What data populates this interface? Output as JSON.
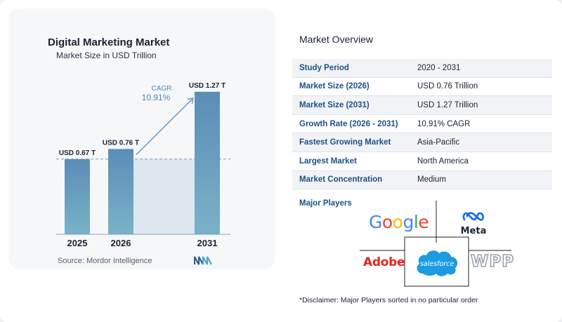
{
  "chart_data": {
    "type": "bar",
    "title": "Digital Marketing Market",
    "subtitle": "Market Size in USD Trillion",
    "categories": [
      "2025",
      "2026",
      "2031"
    ],
    "values": [
      0.67,
      0.76,
      1.27
    ],
    "value_labels": [
      "USD 0.67 T",
      "USD 0.76 T",
      "USD 1.27 T"
    ],
    "ylim": [
      0,
      1.35
    ],
    "grid": false,
    "reference_line_value": 0.67,
    "cagr": {
      "label": "CAGR",
      "value": "10.91%"
    },
    "colors": {
      "bar_top": "#5b8db6",
      "bar_bottom": "#79b2c8",
      "shade": "#dde7ef",
      "arrow": "#6f9cc0",
      "cagr_text": "#4d86b3"
    }
  },
  "source": "Source:  Mordor Intelligence",
  "overview": {
    "title": "Market Overview",
    "rows": [
      {
        "label": "Study Period",
        "value": "2020 - 2031"
      },
      {
        "label": "Market Size (2026)",
        "value": "USD 0.76 Trillion"
      },
      {
        "label": "Market Size (2031)",
        "value": "USD 1.27 Trillion"
      },
      {
        "label": "Growth Rate (2026 - 2031)",
        "value": "10.91% CAGR"
      },
      {
        "label": "Fastest Growing Market",
        "value": "Asia-Pacific"
      },
      {
        "label": "Largest Market",
        "value": "North America"
      },
      {
        "label": "Market Concentration",
        "value": "Medium"
      }
    ]
  },
  "players": {
    "title": "Major Players",
    "google": "Google",
    "meta": "Meta",
    "adobe": "Adobe",
    "salesforce": "salesforce",
    "wpp": "WPP"
  },
  "disclaimer": "*Disclaimer: Major Players sorted in no particular order",
  "brand_colors": {
    "label_blue": "#1e4f8a",
    "adobe_red": "#e3241b",
    "salesforce_blue": "#1c9ce0",
    "meta_blue": "#0a6cf0"
  }
}
